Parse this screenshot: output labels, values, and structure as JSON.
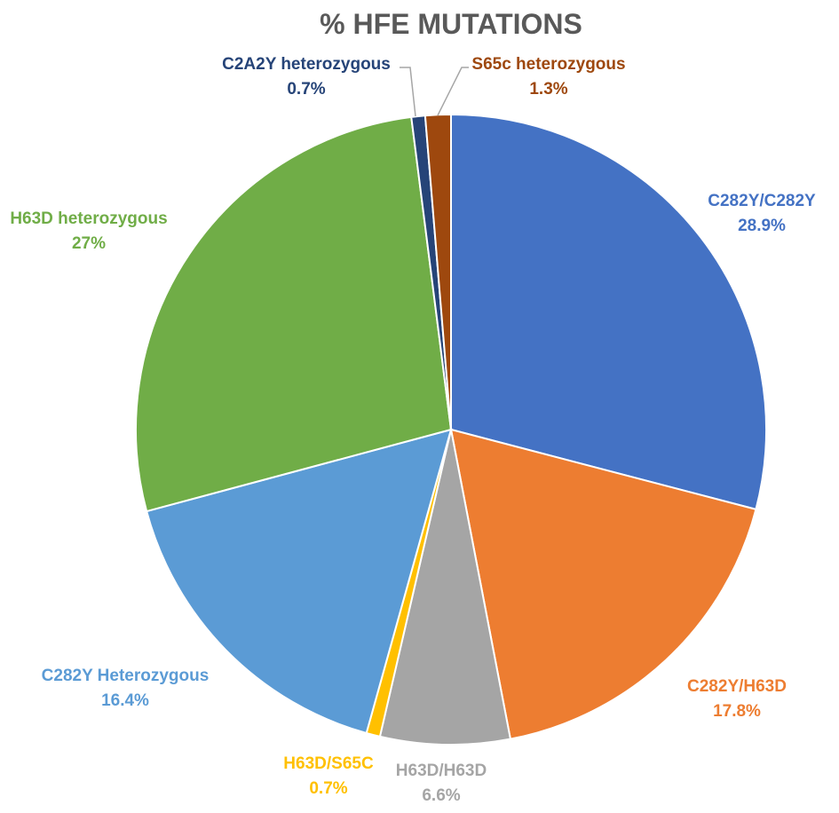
{
  "chart_data": {
    "type": "pie",
    "title": "% HFE MUTATIONS",
    "slices": [
      {
        "name": "C282Y/C282Y",
        "value": 28.9,
        "label": "C282Y/C282Y",
        "value_label": "28.9%",
        "color": "#4472C4"
      },
      {
        "name": "C282Y/H63D",
        "value": 17.8,
        "label": "C282Y/H63D",
        "value_label": "17.8%",
        "color": "#ED7D31"
      },
      {
        "name": "H63D/H63D",
        "value": 6.6,
        "label": "H63D/H63D",
        "value_label": "6.6%",
        "color": "#A5A5A5"
      },
      {
        "name": "H63D/S65C",
        "value": 0.7,
        "label": "H63D/S65C",
        "value_label": "0.7%",
        "color": "#FFC000"
      },
      {
        "name": "C282Y Heterozygous",
        "value": 16.4,
        "label": "C282Y Heterozygous",
        "value_label": "16.4%",
        "color": "#5B9BD5"
      },
      {
        "name": "H63D heterozygous",
        "value": 27,
        "label": "H63D heterozygous",
        "value_label": "27%",
        "color": "#70AD47"
      },
      {
        "name": "C2A2Y heterozygous",
        "value": 0.7,
        "label": "C2A2Y heterozygous",
        "value_label": "0.7%",
        "color": "#264478"
      },
      {
        "name": "S65c heterozygous",
        "value": 1.3,
        "label": "S65c heterozygous",
        "value_label": "1.3%",
        "color": "#9E480E"
      }
    ],
    "start_angle_deg": 0,
    "direction": "clockwise",
    "legend": "none",
    "data_labels": "outside"
  }
}
